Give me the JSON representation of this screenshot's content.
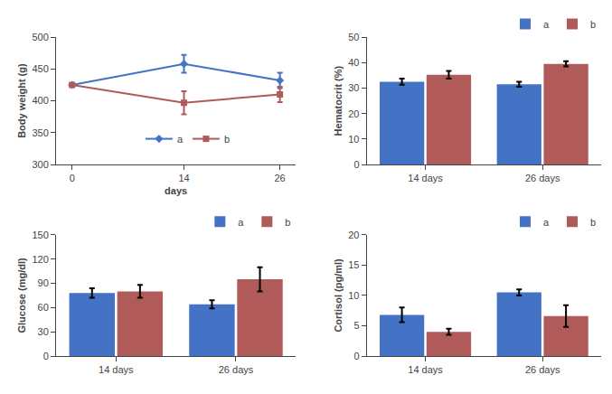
{
  "chart_data": [
    {
      "type": "line",
      "xlabel": "days",
      "ylabel": "Body weight (g)",
      "x": [
        0,
        14,
        26
      ],
      "xlim": [
        -2,
        28
      ],
      "xticks": [
        0,
        14,
        26
      ],
      "ylim": [
        300,
        500
      ],
      "yticks": [
        300,
        350,
        400,
        450,
        500
      ],
      "grid": false,
      "legend": "bottom",
      "series": [
        {
          "name": "a",
          "color": "#4472C4",
          "marker": "diamond",
          "values": [
            425,
            458,
            432
          ],
          "errors": [
            0,
            14,
            12
          ]
        },
        {
          "name": "b",
          "color": "#B05A5A",
          "marker": "square",
          "values": [
            425,
            397,
            410
          ],
          "errors": [
            0,
            18,
            12
          ]
        }
      ]
    },
    {
      "type": "bar",
      "ylabel": "Hematocrit (%)",
      "categories": [
        "14 days",
        "26 days"
      ],
      "ylim": [
        0,
        50
      ],
      "yticks": [
        0,
        10,
        20,
        30,
        40,
        50
      ],
      "grid": false,
      "legend": "top-right",
      "series": [
        {
          "name": "a",
          "color": "#4472C4",
          "values": [
            32.5,
            31.5
          ],
          "errors": [
            1.2,
            1.0
          ]
        },
        {
          "name": "b",
          "color": "#B05A5A",
          "values": [
            35.2,
            39.5
          ],
          "errors": [
            1.5,
            1.0
          ]
        }
      ]
    },
    {
      "type": "bar",
      "ylabel": "Glucose (mg/dl)",
      "categories": [
        "14 days",
        "26 days"
      ],
      "ylim": [
        0,
        150
      ],
      "yticks": [
        0,
        30,
        60,
        90,
        120,
        150
      ],
      "grid": false,
      "legend": "top-right",
      "series": [
        {
          "name": "a",
          "color": "#4472C4",
          "values": [
            78,
            64
          ],
          "errors": [
            6,
            5
          ]
        },
        {
          "name": "b",
          "color": "#B05A5A",
          "values": [
            80,
            95
          ],
          "errors": [
            8,
            15
          ]
        }
      ]
    },
    {
      "type": "bar",
      "ylabel": "Cortisol (pg/ml)",
      "categories": [
        "14 days",
        "26 days"
      ],
      "ylim": [
        0,
        20
      ],
      "yticks": [
        0,
        5,
        10,
        15,
        20
      ],
      "grid": false,
      "legend": "top-right",
      "series": [
        {
          "name": "a",
          "color": "#4472C4",
          "values": [
            6.8,
            10.5
          ],
          "errors": [
            1.2,
            0.5
          ]
        },
        {
          "name": "b",
          "color": "#B05A5A",
          "values": [
            4.0,
            6.6
          ],
          "errors": [
            0.5,
            1.8
          ]
        }
      ]
    }
  ]
}
